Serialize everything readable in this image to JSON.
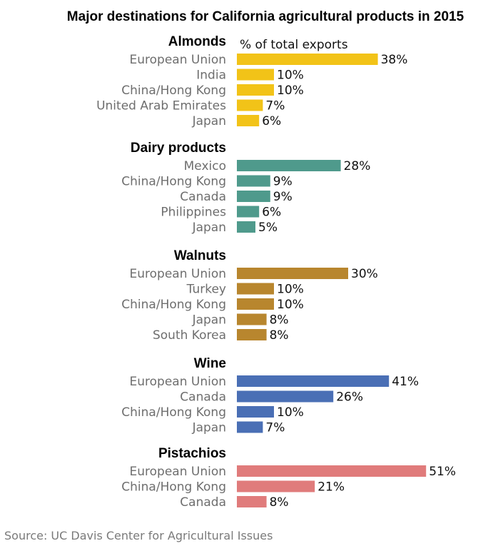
{
  "title": "Major destinations for California agricultural products in 2015",
  "unit_label": "% of total exports",
  "source": "Source: UC Davis Center for Agricultural Issues",
  "chart_data": {
    "type": "bar",
    "orientation": "horizontal",
    "title": "Major destinations for California agricultural products in 2015",
    "unit": "% of total exports",
    "groups": [
      {
        "name": "Almonds",
        "color": "#f2c318",
        "categories": [
          "European Union",
          "India",
          "China/Hong Kong",
          "United Arab Emirates",
          "Japan"
        ],
        "values": [
          38,
          10,
          10,
          7,
          6
        ],
        "labels": [
          "38%",
          "10%",
          "10%",
          "7%",
          "6%"
        ]
      },
      {
        "name": "Dairy products",
        "color": "#4f9a8c",
        "categories": [
          "Mexico",
          "China/Hong Kong",
          "Canada",
          "Philippines",
          "Japan"
        ],
        "values": [
          28,
          9,
          9,
          6,
          5
        ],
        "labels": [
          "28%",
          "9%",
          "9%",
          "6%",
          "5%"
        ]
      },
      {
        "name": "Walnuts",
        "color": "#b8862e",
        "categories": [
          "European Union",
          "Turkey",
          "China/Hong Kong",
          "Japan",
          "South Korea"
        ],
        "values": [
          30,
          10,
          10,
          8,
          8
        ],
        "labels": [
          "30%",
          "10%",
          "10%",
          "8%",
          "8%"
        ]
      },
      {
        "name": "Wine",
        "color": "#4a6fb5",
        "categories": [
          "European Union",
          "Canada",
          "China/Hong Kong",
          "Japan"
        ],
        "values": [
          41,
          26,
          10,
          7
        ],
        "labels": [
          "41%",
          "26%",
          "10%",
          "7%"
        ]
      },
      {
        "name": "Pistachios",
        "color": "#e07b7b",
        "categories": [
          "European Union",
          "China/Hong Kong",
          "Canada"
        ],
        "values": [
          51,
          21,
          8
        ],
        "labels": [
          "51%",
          "21%",
          "8%"
        ]
      }
    ]
  }
}
